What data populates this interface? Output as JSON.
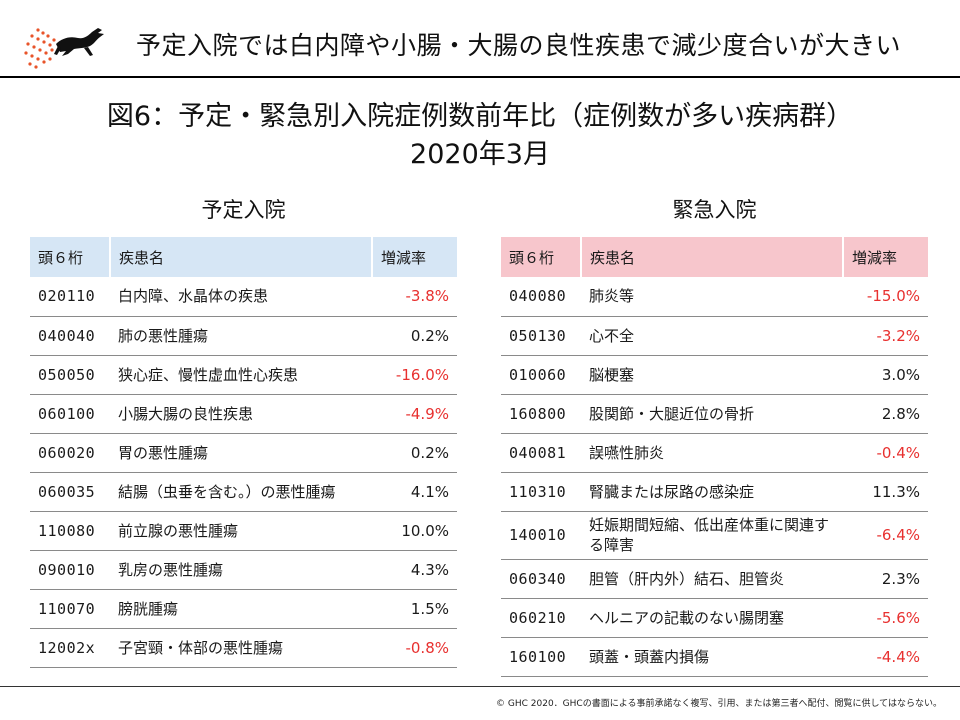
{
  "header": {
    "headline": "予定入院では白内障や小腸・大腸の良性疾患で減少度合いが大きい"
  },
  "figure": {
    "title_line1": "図6：予定・緊急別入院症例数前年比（症例数が多い疾病群）",
    "title_line2": "2020年3月"
  },
  "colors": {
    "negative": "#e8302f",
    "planned_header": "#d6e6f5",
    "emergency_header": "#f7c6cc",
    "logo_accent": "#e8542a"
  },
  "planned": {
    "title": "予定入院",
    "columns": [
      "頭６桁",
      "疾患名",
      "増減率"
    ],
    "rows": [
      {
        "code": "020110",
        "name": "白内障、水晶体の疾患",
        "rate": "-3.8%"
      },
      {
        "code": "040040",
        "name": "肺の悪性腫瘍",
        "rate": "0.2%"
      },
      {
        "code": "050050",
        "name": "狭心症、慢性虚血性心疾患",
        "rate": "-16.0%"
      },
      {
        "code": "060100",
        "name": "小腸大腸の良性疾患",
        "rate": "-4.9%"
      },
      {
        "code": "060020",
        "name": "胃の悪性腫瘍",
        "rate": "0.2%"
      },
      {
        "code": "060035",
        "name": "結腸（虫垂を含む。）の悪性腫瘍",
        "rate": "4.1%"
      },
      {
        "code": "110080",
        "name": "前立腺の悪性腫瘍",
        "rate": "10.0%"
      },
      {
        "code": "090010",
        "name": "乳房の悪性腫瘍",
        "rate": "4.3%"
      },
      {
        "code": "110070",
        "name": "膀胱腫瘍",
        "rate": "1.5%"
      },
      {
        "code": "12002x",
        "name": "子宮頸・体部の悪性腫瘍",
        "rate": "-0.8%"
      }
    ]
  },
  "emergency": {
    "title": "緊急入院",
    "columns": [
      "頭６桁",
      "疾患名",
      "増減率"
    ],
    "rows": [
      {
        "code": "040080",
        "name": "肺炎等",
        "rate": "-15.0%"
      },
      {
        "code": "050130",
        "name": "心不全",
        "rate": "-3.2%"
      },
      {
        "code": "010060",
        "name": "脳梗塞",
        "rate": "3.0%"
      },
      {
        "code": "160800",
        "name": "股関節・大腿近位の骨折",
        "rate": "2.8%"
      },
      {
        "code": "040081",
        "name": "誤嚥性肺炎",
        "rate": "-0.4%"
      },
      {
        "code": "110310",
        "name": "腎臓または尿路の感染症",
        "rate": "11.3%"
      },
      {
        "code": "140010",
        "name": "妊娠期間短縮、低出産体重に関連する障害",
        "rate": "-6.4%"
      },
      {
        "code": "060340",
        "name": "胆管（肝内外）結石、胆管炎",
        "rate": "2.3%"
      },
      {
        "code": "060210",
        "name": "ヘルニアの記載のない腸閉塞",
        "rate": "-5.6%"
      },
      {
        "code": "160100",
        "name": "頭蓋・頭蓋内損傷",
        "rate": "-4.4%"
      }
    ]
  },
  "footer": {
    "copyright": "© GHC 2020．GHCの書面による事前承諾なく複写、引用、または第三者へ配付、閲覧に供してはならない。"
  }
}
